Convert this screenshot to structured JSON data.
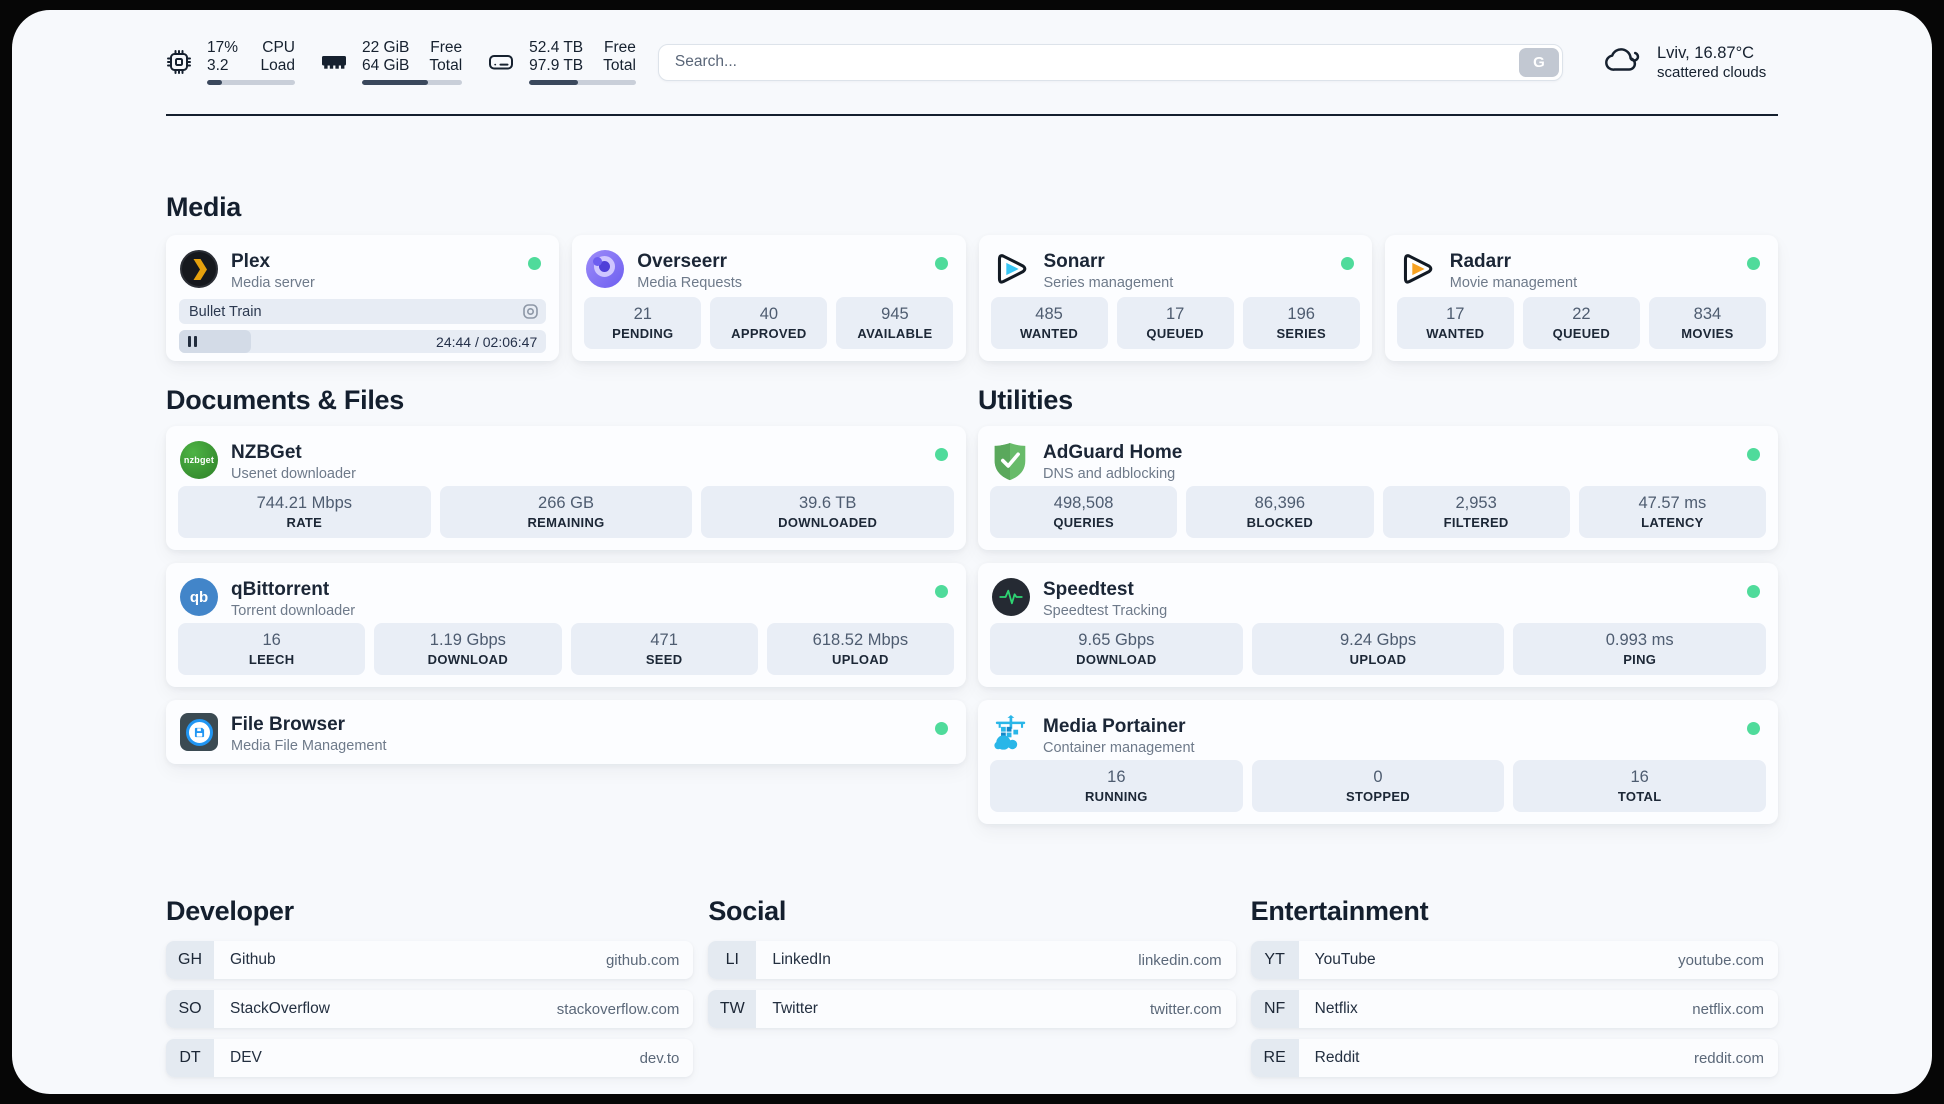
{
  "colors": {
    "status_online": "#4fdb9b",
    "accent_dark": "#15202e",
    "background": "#f7f9fc"
  },
  "header": {
    "stats": [
      {
        "name": "cpu",
        "values": [
          "17%",
          "3.2"
        ],
        "labels": [
          "CPU",
          "Load"
        ],
        "percent": 17
      },
      {
        "name": "memory",
        "values": [
          "22 GiB",
          "64 GiB"
        ],
        "labels": [
          "Free",
          "Total"
        ],
        "percent": 66
      },
      {
        "name": "disk",
        "values": [
          "52.4 TB",
          "97.9 TB"
        ],
        "labels": [
          "Free",
          "Total"
        ],
        "percent": 46
      }
    ],
    "search": {
      "placeholder": "Search...",
      "button_label": "G"
    },
    "weather": {
      "location_temp": "Lviv, 16.87°C",
      "condition": "scattered clouds"
    }
  },
  "media": {
    "title": "Media",
    "plex": {
      "title": "Plex",
      "subtitle": "Media server",
      "now_playing": "Bullet Train",
      "time_display": "24:44 / 02:06:47",
      "progress_percent": 19.5
    },
    "overseerr": {
      "title": "Overseerr",
      "subtitle": "Media Requests",
      "stats": [
        {
          "value": "21",
          "label": "PENDING"
        },
        {
          "value": "40",
          "label": "APPROVED"
        },
        {
          "value": "945",
          "label": "AVAILABLE"
        }
      ]
    },
    "sonarr": {
      "title": "Sonarr",
      "subtitle": "Series management",
      "stats": [
        {
          "value": "485",
          "label": "WANTED"
        },
        {
          "value": "17",
          "label": "QUEUED"
        },
        {
          "value": "196",
          "label": "SERIES"
        }
      ]
    },
    "radarr": {
      "title": "Radarr",
      "subtitle": "Movie management",
      "stats": [
        {
          "value": "17",
          "label": "WANTED"
        },
        {
          "value": "22",
          "label": "QUEUED"
        },
        {
          "value": "834",
          "label": "MOVIES"
        }
      ]
    }
  },
  "documents": {
    "title": "Documents & Files",
    "nzbget": {
      "title": "NZBGet",
      "subtitle": "Usenet downloader",
      "icon_text": "nzbget",
      "stats": [
        {
          "value": "744.21 Mbps",
          "label": "RATE"
        },
        {
          "value": "266 GB",
          "label": "REMAINING"
        },
        {
          "value": "39.6 TB",
          "label": "DOWNLOADED"
        }
      ]
    },
    "qbittorrent": {
      "title": "qBittorrent",
      "subtitle": "Torrent downloader",
      "icon_text": "qb",
      "stats": [
        {
          "value": "16",
          "label": "LEECH"
        },
        {
          "value": "1.19 Gbps",
          "label": "DOWNLOAD"
        },
        {
          "value": "471",
          "label": "SEED"
        },
        {
          "value": "618.52 Mbps",
          "label": "UPLOAD"
        }
      ]
    },
    "filebrowser": {
      "title": "File Browser",
      "subtitle": "Media File Management"
    }
  },
  "utilities": {
    "title": "Utilities",
    "adguard": {
      "title": "AdGuard Home",
      "subtitle": "DNS and adblocking",
      "stats": [
        {
          "value": "498,508",
          "label": "QUERIES"
        },
        {
          "value": "86,396",
          "label": "BLOCKED"
        },
        {
          "value": "2,953",
          "label": "FILTERED"
        },
        {
          "value": "47.57 ms",
          "label": "LATENCY"
        }
      ]
    },
    "speedtest": {
      "title": "Speedtest",
      "subtitle": "Speedtest Tracking",
      "stats": [
        {
          "value": "9.65 Gbps",
          "label": "DOWNLOAD"
        },
        {
          "value": "9.24 Gbps",
          "label": "UPLOAD"
        },
        {
          "value": "0.993 ms",
          "label": "PING"
        }
      ]
    },
    "portainer": {
      "title": "Media Portainer",
      "subtitle": "Container management",
      "stats": [
        {
          "value": "16",
          "label": "RUNNING"
        },
        {
          "value": "0",
          "label": "STOPPED"
        },
        {
          "value": "16",
          "label": "TOTAL"
        }
      ]
    }
  },
  "bookmarks": [
    {
      "title": "Developer",
      "links": [
        {
          "abbr": "GH",
          "name": "Github",
          "url": "github.com"
        },
        {
          "abbr": "SO",
          "name": "StackOverflow",
          "url": "stackoverflow.com"
        },
        {
          "abbr": "DT",
          "name": "DEV",
          "url": "dev.to"
        }
      ]
    },
    {
      "title": "Social",
      "links": [
        {
          "abbr": "LI",
          "name": "LinkedIn",
          "url": "linkedin.com"
        },
        {
          "abbr": "TW",
          "name": "Twitter",
          "url": "twitter.com"
        }
      ]
    },
    {
      "title": "Entertainment",
      "links": [
        {
          "abbr": "YT",
          "name": "YouTube",
          "url": "youtube.com"
        },
        {
          "abbr": "NF",
          "name": "Netflix",
          "url": "netflix.com"
        },
        {
          "abbr": "RE",
          "name": "Reddit",
          "url": "reddit.com"
        }
      ]
    }
  ]
}
